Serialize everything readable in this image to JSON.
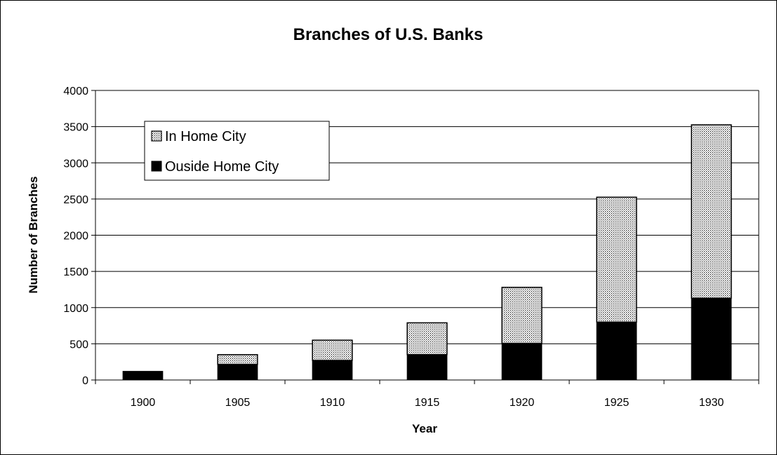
{
  "chart_data": {
    "type": "bar",
    "stacked": true,
    "title": "Branches of U.S. Banks",
    "xlabel": "Year",
    "ylabel": "Number of Branches",
    "categories": [
      "1900",
      "1905",
      "1910",
      "1915",
      "1920",
      "1925",
      "1930"
    ],
    "series": [
      {
        "name": "Ouside Home City",
        "values": [
          120,
          215,
          270,
          350,
          505,
          800,
          1130
        ]
      },
      {
        "name": "In Home City",
        "values": [
          0,
          135,
          280,
          440,
          775,
          1725,
          2395
        ]
      }
    ],
    "ylim": [
      0,
      4000
    ],
    "yticks": [
      0,
      500,
      1000,
      1500,
      2000,
      2500,
      3000,
      3500,
      4000
    ],
    "grid": true,
    "legend_position": "top-left",
    "colors": {
      "outside": "#000000",
      "in_home_fg": "#000000",
      "in_home_bg": "#ffffff",
      "grid": "#000000"
    }
  }
}
